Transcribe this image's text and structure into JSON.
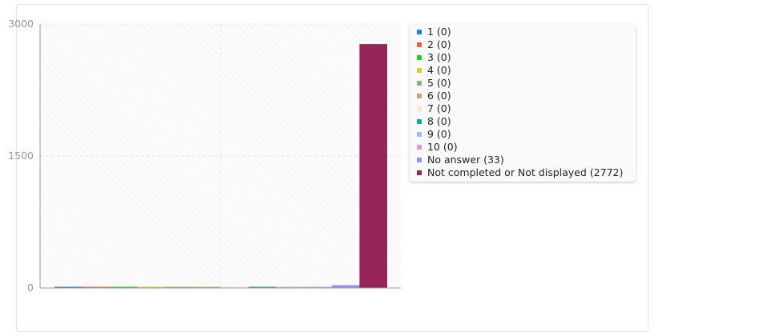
{
  "chart_data": {
    "type": "bar",
    "categories": [
      "1",
      "2",
      "3",
      "4",
      "5",
      "6",
      "7",
      "8",
      "9",
      "10",
      "No answer",
      "Not completed or Not displayed"
    ],
    "values": [
      0,
      0,
      0,
      0,
      0,
      0,
      0,
      0,
      0,
      0,
      33,
      2772
    ],
    "colors": [
      "#1a82d6",
      "#f0623a",
      "#1fcf2a",
      "#d4d41a",
      "#88b878",
      "#c8a47c",
      "#fce4da",
      "#14a898",
      "#a8bcd8",
      "#d898d8",
      "#9494f8",
      "#952558"
    ],
    "legend": [
      "1 (0)",
      "2 (0)",
      "3 (0)",
      "4 (0)",
      "5 (0)",
      "6 (0)",
      "7 (0)",
      "8 (0)",
      "9 (0)",
      "10 (0)",
      "No answer (33)",
      "Not completed or Not displayed (2772)"
    ],
    "legend_position": "right",
    "yticks": [
      "0",
      "1500",
      "3000"
    ],
    "ylim": [
      0,
      3000
    ],
    "grid": true,
    "xlabel": "",
    "ylabel": ""
  }
}
